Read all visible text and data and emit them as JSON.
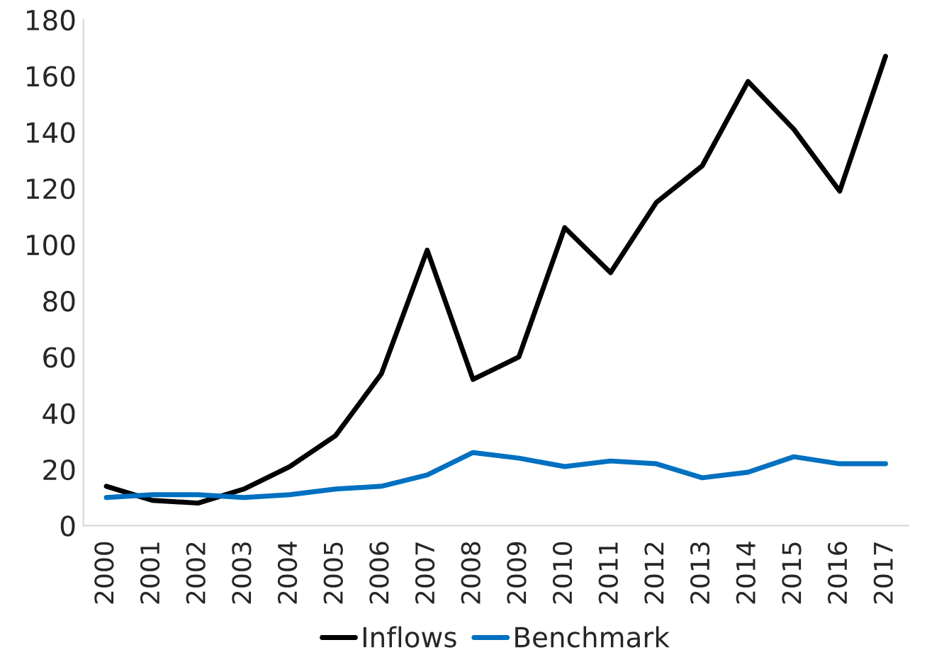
{
  "chart_data": {
    "type": "line",
    "categories": [
      "2000",
      "2001",
      "2002",
      "2003",
      "2004",
      "2005",
      "2006",
      "2007",
      "2008",
      "2009",
      "2010",
      "2011",
      "2012",
      "2013",
      "2014",
      "2015",
      "2016",
      "2017"
    ],
    "series": [
      {
        "name": "Inflows",
        "color": "#000000",
        "values": [
          14,
          9,
          8,
          13,
          21,
          32,
          54,
          98,
          52,
          60,
          106,
          90,
          115,
          128,
          158,
          141,
          119,
          167
        ]
      },
      {
        "name": "Benchmark",
        "color": "#0070c0",
        "values": [
          10,
          11,
          11,
          10,
          11,
          13,
          14,
          18,
          26,
          24,
          21,
          23,
          22,
          17,
          19,
          24.5,
          22,
          22
        ]
      }
    ],
    "ylim": [
      0,
      180
    ],
    "yticks": [
      0,
      20,
      40,
      60,
      80,
      100,
      120,
      140,
      160,
      180
    ],
    "grid": false,
    "legend": "bottom",
    "marker": "none",
    "line_style": "solid"
  }
}
